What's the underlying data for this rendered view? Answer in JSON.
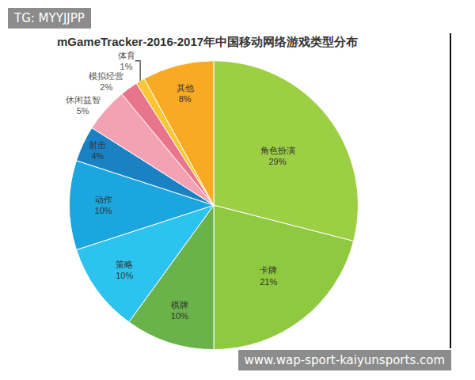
{
  "chart_data": {
    "type": "pie",
    "title": "mGameTracker-2016-2017年中国移动网络游戏类型分布",
    "categories": [
      "角色扮演",
      "卡牌",
      "棋牌",
      "策略",
      "动作",
      "射击",
      "休闲益智",
      "模拟经营",
      "体育",
      "其他"
    ],
    "values": [
      29,
      21,
      10,
      10,
      10,
      4,
      5,
      2,
      1,
      8
    ],
    "value_labels": [
      "29%",
      "21%",
      "10%",
      "10%",
      "10%",
      "4%",
      "5%",
      "2%",
      "1%",
      "8%"
    ],
    "colors": [
      "#9dcf45",
      "#8fc93f",
      "#6ab34a",
      "#2cc3ee",
      "#1ca6e0",
      "#1a82c4",
      "#f3a2b4",
      "#e8758b",
      "#f8c834",
      "#f8aa25"
    ],
    "data_labels": true,
    "annotations": [
      "TG: MYYJJPP",
      "www.wap-sport-kaiyunsports.com"
    ]
  }
}
